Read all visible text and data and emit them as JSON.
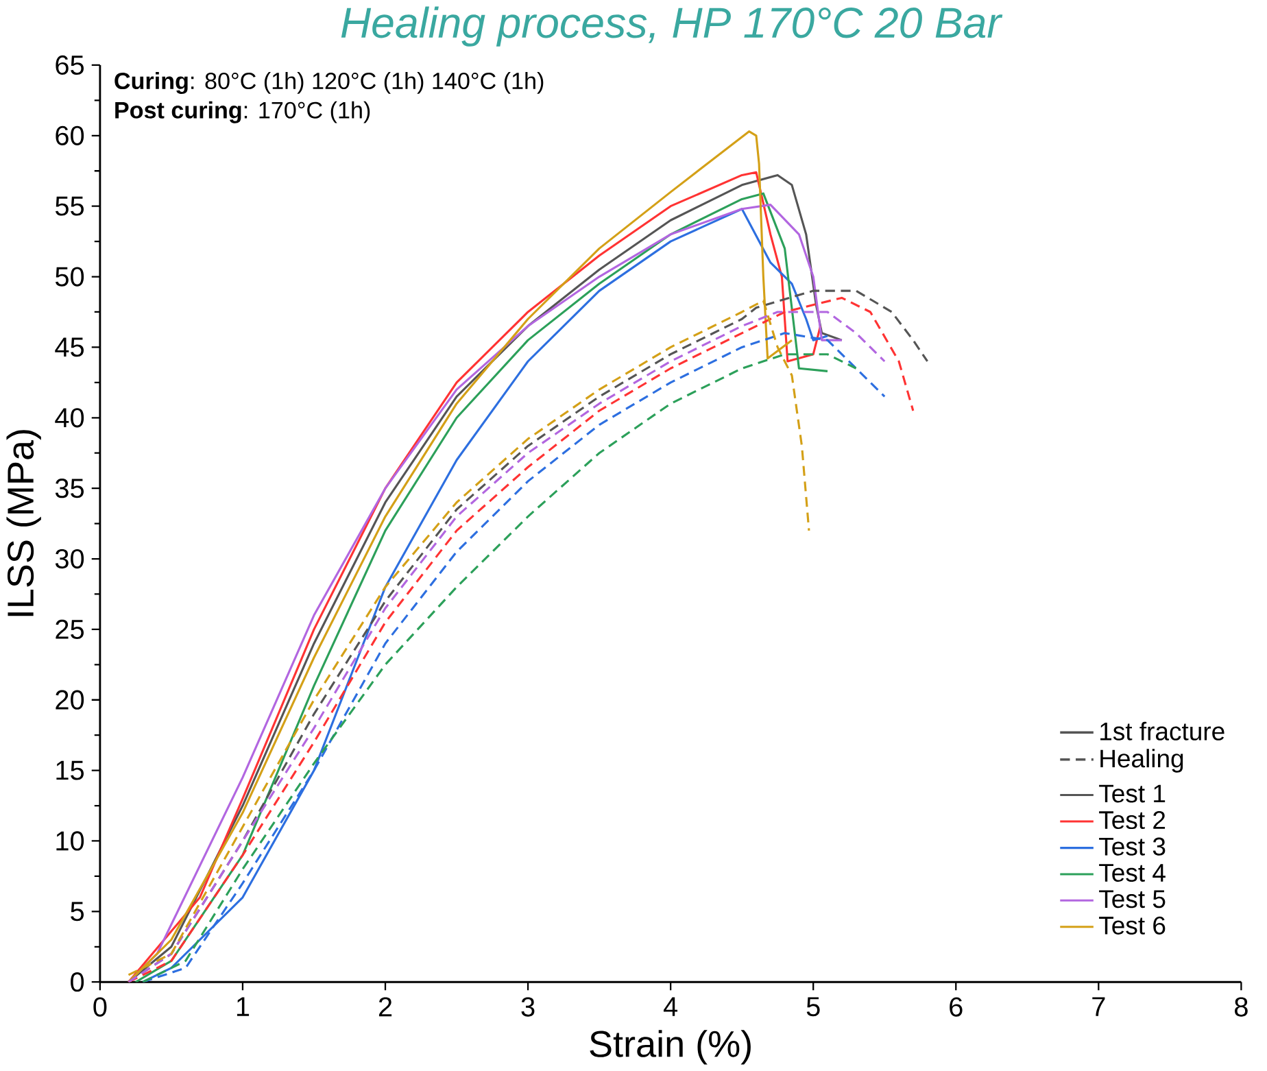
{
  "chart_data": {
    "type": "line",
    "title": "Healing process, HP 170°C 20 Bar",
    "xlabel": "Strain (%)",
    "ylabel": "ILSS (MPa)",
    "xlim": [
      0,
      8
    ],
    "ylim": [
      0,
      65
    ],
    "xticks": [
      0,
      1,
      2,
      3,
      4,
      5,
      6,
      7,
      8
    ],
    "yticks": [
      0,
      5,
      10,
      15,
      20,
      25,
      30,
      35,
      40,
      45,
      50,
      55,
      60,
      65
    ],
    "grid": false,
    "legend": "bottom right",
    "marker": "none",
    "annotations": [
      "**Curing**: 80°C (1h) 120°C (1h) 140°C (1h)",
      "**Post curing**: 170°C (1h)",
      "1st fracture",
      "Healing"
    ],
    "series": [
      {
        "name": "Test 1",
        "color": "#555555",
        "line_style": "solid",
        "x": [
          0.2,
          0.5,
          1,
          1.5,
          2,
          2.5,
          3,
          3.5,
          4,
          4.5,
          4.75,
          4.85,
          4.95,
          5.02,
          5.06,
          5.2
        ],
        "values": [
          0,
          2.5,
          12.5,
          24,
          34,
          41.5,
          46.5,
          50.5,
          54,
          56.5,
          57.2,
          56.5,
          53,
          48,
          46,
          45.5
        ]
      },
      {
        "name": "Test 2",
        "color": "#ff3333",
        "line_style": "solid",
        "x": [
          0.2,
          0.7,
          1,
          1.5,
          2,
          2.5,
          3,
          3.5,
          4,
          4.5,
          4.6,
          4.7,
          4.78,
          4.82,
          5.0,
          5.05
        ],
        "values": [
          0,
          6,
          13,
          25,
          35,
          42.5,
          47.5,
          51.5,
          55,
          57.2,
          57.4,
          53,
          50,
          44,
          44.5,
          46.5
        ]
      },
      {
        "name": "Test 3",
        "color": "#2d6fe0",
        "line_style": "solid",
        "x": [
          0.3,
          0.5,
          1,
          1.5,
          2,
          2.5,
          3,
          3.5,
          4,
          4.5,
          4.7,
          4.85,
          4.95,
          5.0,
          5.1
        ],
        "values": [
          0,
          1,
          6,
          15,
          28,
          37,
          44,
          49,
          52.5,
          54.8,
          51,
          49.5,
          47,
          45.5,
          45.8
        ]
      },
      {
        "name": "Test 4",
        "color": "#2ca05a",
        "line_style": "solid",
        "x": [
          0.25,
          0.5,
          1,
          1.5,
          2,
          2.5,
          3,
          3.5,
          4,
          4.5,
          4.65,
          4.8,
          4.9,
          5.1
        ],
        "values": [
          0,
          1.5,
          9,
          21,
          32,
          40,
          45.5,
          49.5,
          53,
          55.5,
          55.9,
          52,
          43.5,
          43.3
        ]
      },
      {
        "name": "Test 5",
        "color": "#b266e0",
        "line_style": "solid",
        "x": [
          0.2,
          0.4,
          1,
          1.5,
          2,
          2.5,
          3,
          3.5,
          4,
          4.5,
          4.7,
          4.9,
          5.0,
          5.06,
          5.2
        ],
        "values": [
          0,
          2,
          14.5,
          26,
          35,
          42,
          46.5,
          50,
          53,
          54.8,
          55.1,
          53,
          50,
          45.5,
          45.5
        ]
      },
      {
        "name": "Test 6",
        "color": "#d4a017",
        "line_style": "solid",
        "x": [
          0.2,
          0.5,
          1,
          1.5,
          2,
          2.5,
          3,
          3.5,
          4,
          4.55,
          4.6,
          4.62,
          4.65,
          4.68,
          4.85
        ],
        "values": [
          0,
          3,
          12,
          23,
          33,
          41,
          47,
          52,
          56,
          60.3,
          60,
          58,
          50,
          44.2,
          45.5
        ]
      },
      {
        "color": "#555555",
        "line_style": "dashed",
        "x": [
          0.2,
          0.5,
          1,
          1.5,
          2,
          2.5,
          3,
          3.5,
          4,
          4.5,
          4.6,
          5.0,
          5.3,
          5.55,
          5.7,
          5.8
        ],
        "values": [
          0,
          2,
          10,
          19,
          27,
          33.5,
          38,
          41.5,
          44.5,
          47,
          47.8,
          49,
          49,
          47.5,
          45.5,
          44
        ]
      },
      {
        "color": "#ff3333",
        "line_style": "dashed",
        "x": [
          0.2,
          0.5,
          1,
          1.5,
          2,
          2.5,
          3,
          3.5,
          4,
          4.5,
          4.8,
          5.2,
          5.4,
          5.6,
          5.7
        ],
        "values": [
          0,
          1.5,
          9,
          17,
          25.5,
          32,
          36.5,
          40.5,
          43.5,
          46,
          47.5,
          48.5,
          47.5,
          44,
          40.5
        ]
      },
      {
        "color": "#2d6fe0",
        "line_style": "dashed",
        "x": [
          0.3,
          0.6,
          1,
          1.5,
          2,
          2.5,
          3,
          3.5,
          4,
          4.5,
          4.8,
          5.1,
          5.3,
          5.5
        ],
        "values": [
          0,
          1,
          7,
          15,
          24,
          30.5,
          35.5,
          39.5,
          42.5,
          45,
          46,
          45.5,
          43.5,
          41.5
        ]
      },
      {
        "color": "#2ca05a",
        "line_style": "dashed",
        "x": [
          0.3,
          0.6,
          1,
          1.5,
          2,
          2.5,
          3,
          3.5,
          4,
          4.5,
          4.8,
          5.1,
          5.3
        ],
        "values": [
          0,
          1.5,
          8,
          15.5,
          22.5,
          28,
          33,
          37.5,
          41,
          43.5,
          44.5,
          44.5,
          43.5
        ]
      },
      {
        "color": "#b266e0",
        "line_style": "dashed",
        "x": [
          0.2,
          0.5,
          1,
          1.5,
          2,
          2.5,
          3,
          3.5,
          4,
          4.5,
          4.75,
          5.1,
          5.3,
          5.5
        ],
        "values": [
          0,
          2,
          10,
          18,
          26.5,
          33,
          37.5,
          41,
          44,
          46.5,
          47.5,
          47.5,
          46,
          44
        ]
      },
      {
        "color": "#d4a017",
        "line_style": "dashed",
        "x": [
          0.2,
          0.5,
          1,
          1.5,
          2,
          2.5,
          3,
          3.5,
          4,
          4.5,
          4.65,
          4.75,
          4.85,
          4.92,
          4.97
        ],
        "values": [
          0.5,
          2,
          11,
          20,
          28,
          34,
          38.5,
          42,
          45,
          47.5,
          48.3,
          45,
          43,
          38,
          32
        ]
      }
    ]
  }
}
